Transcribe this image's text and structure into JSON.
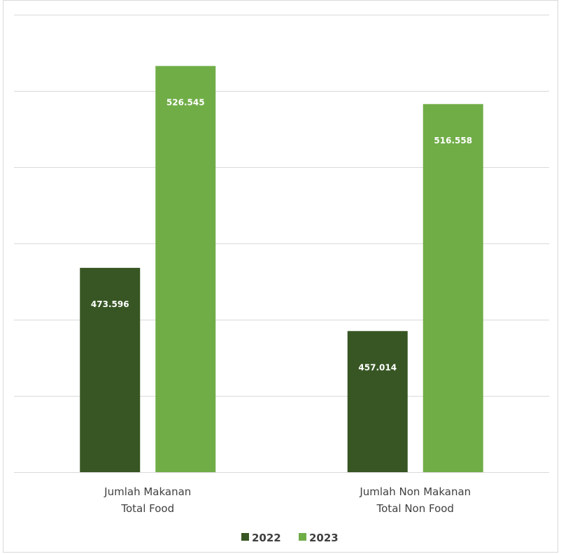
{
  "chart_data": {
    "type": "bar",
    "title": "",
    "xlabel": "",
    "ylabel": "",
    "categories": [
      [
        "Jumlah Makanan",
        "Total Food"
      ],
      [
        "Jumlah Non Makanan",
        "Total Non Food"
      ]
    ],
    "series": [
      {
        "name": "2022",
        "color": "#375623",
        "values": [
          473.596,
          457.014
        ],
        "labels": [
          "473.596",
          "457.014"
        ]
      },
      {
        "name": "2023",
        "color": "#70ad47",
        "values": [
          526.545,
          516.558
        ],
        "labels": [
          "526.545",
          "516.558"
        ]
      }
    ],
    "ylim": [
      420,
      540
    ],
    "grid": true,
    "gridline_color": "#d9d9d9",
    "legend_position": "bottom",
    "y_axis_labels_shown": false
  }
}
